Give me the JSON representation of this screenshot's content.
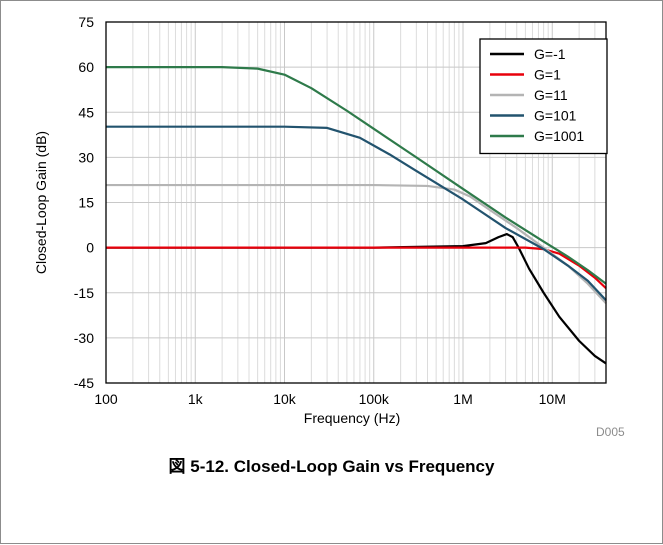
{
  "chart_data": {
    "type": "line",
    "title": "",
    "xlabel": "Frequency (Hz)",
    "ylabel": "Closed-Loop Gain (dB)",
    "xscale": "log",
    "xlim": [
      100,
      40000000
    ],
    "ylim": [
      -45,
      75
    ],
    "xticks": [
      100,
      1000,
      10000,
      100000,
      1000000,
      10000000
    ],
    "xtick_labels": [
      "100",
      "1k",
      "10k",
      "100k",
      "1M",
      "10M"
    ],
    "yticks": [
      75,
      60,
      45,
      30,
      15,
      0,
      -15,
      -30,
      -45
    ],
    "ytick_labels": [
      "75",
      "60",
      "45",
      "30",
      "15",
      "0",
      "-15",
      "-30",
      "-45"
    ],
    "grid": true,
    "legend_position": "top-right",
    "series": [
      {
        "name": "G=-1",
        "color": "#000000",
        "points": [
          [
            100,
            0
          ],
          [
            100000,
            0
          ],
          [
            1000000,
            0.5
          ],
          [
            1800000,
            1.5
          ],
          [
            2500000,
            3.5
          ],
          [
            3100000,
            4.5
          ],
          [
            3600000,
            3.5
          ],
          [
            4200000,
            0
          ],
          [
            5500000,
            -7
          ],
          [
            8000000,
            -15
          ],
          [
            12000000,
            -23
          ],
          [
            20000000,
            -31
          ],
          [
            30000000,
            -36
          ],
          [
            40000000,
            -38.5
          ]
        ]
      },
      {
        "name": "G=1",
        "color": "#e8000b",
        "points": [
          [
            100,
            0
          ],
          [
            1000000,
            0
          ],
          [
            5000000,
            0
          ],
          [
            8000000,
            -0.5
          ],
          [
            12000000,
            -2
          ],
          [
            20000000,
            -6
          ],
          [
            30000000,
            -10
          ],
          [
            40000000,
            -13.5
          ]
        ]
      },
      {
        "name": "G=11",
        "color": "#b4b4b4",
        "points": [
          [
            100,
            20.8
          ],
          [
            100000,
            20.8
          ],
          [
            400000,
            20.5
          ],
          [
            800000,
            19.3
          ],
          [
            1200000,
            17
          ],
          [
            2000000,
            12.5
          ],
          [
            4000000,
            6.5
          ],
          [
            8000000,
            0
          ],
          [
            15000000,
            -6
          ],
          [
            25000000,
            -12
          ],
          [
            40000000,
            -18.5
          ]
        ]
      },
      {
        "name": "G=101",
        "color": "#22536e",
        "points": [
          [
            100,
            40.2
          ],
          [
            10000,
            40.2
          ],
          [
            30000,
            39.8
          ],
          [
            70000,
            36.5
          ],
          [
            150000,
            31
          ],
          [
            300000,
            25.5
          ],
          [
            1000000,
            16
          ],
          [
            3000000,
            6.5
          ],
          [
            8000000,
            -0.5
          ],
          [
            15000000,
            -6
          ],
          [
            25000000,
            -11
          ],
          [
            40000000,
            -17.5
          ]
        ]
      },
      {
        "name": "G=1001",
        "color": "#2e7a4a",
        "points": [
          [
            100,
            60
          ],
          [
            2000,
            60
          ],
          [
            5000,
            59.5
          ],
          [
            10000,
            57.5
          ],
          [
            20000,
            53
          ],
          [
            50000,
            45.5
          ],
          [
            100000,
            39.5
          ],
          [
            300000,
            30
          ],
          [
            1000000,
            19.5
          ],
          [
            3000000,
            10
          ],
          [
            8000000,
            2
          ],
          [
            15000000,
            -3
          ],
          [
            25000000,
            -7.5
          ],
          [
            40000000,
            -12
          ]
        ]
      }
    ]
  },
  "caption": "図 5-12. Closed-Loop Gain vs Frequency",
  "figure_id": "D005"
}
